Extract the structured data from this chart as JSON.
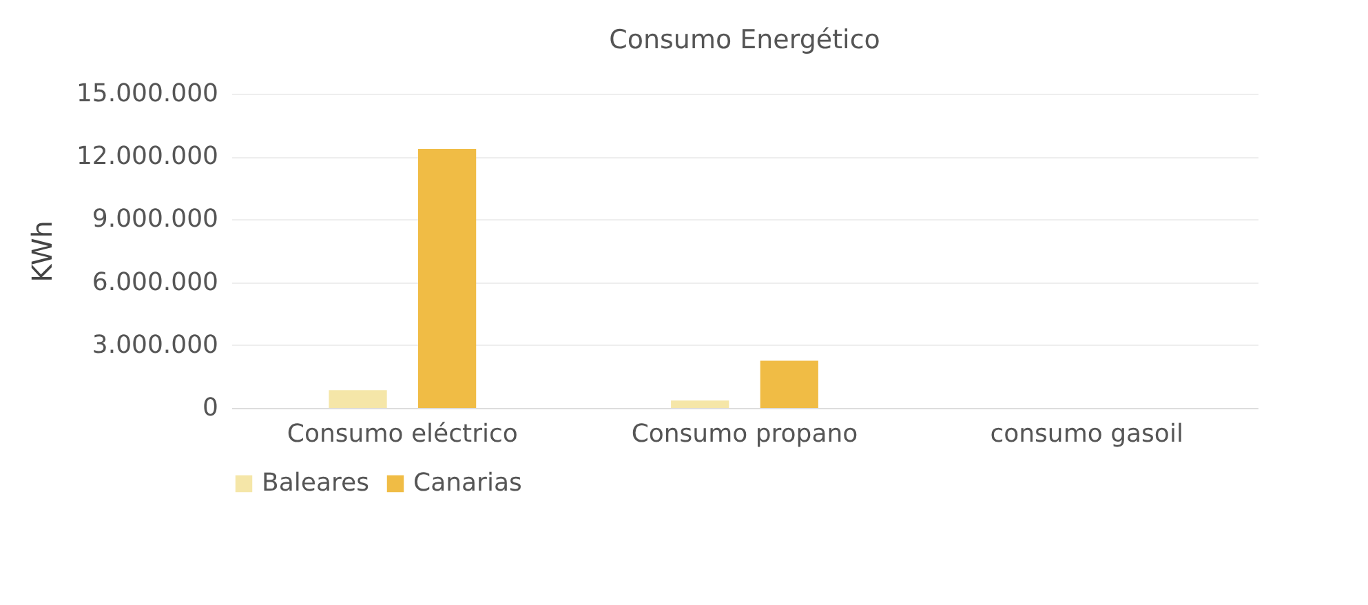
{
  "chart_data": {
    "type": "bar",
    "title": "Consumo Energético",
    "ylabel": "KWh",
    "categories": [
      "Consumo eléctrico",
      "Consumo propano",
      "consumo gasoil"
    ],
    "series": [
      {
        "name": "Baleares",
        "color": "#f5e6a8",
        "values": [
          850000,
          350000,
          null
        ]
      },
      {
        "name": "Canarias",
        "color": "#f0bc45",
        "values": [
          12370000,
          2250000,
          0
        ]
      }
    ],
    "ylim": [
      0,
      15000000
    ],
    "yticks": [
      {
        "value": 0,
        "label": "0"
      },
      {
        "value": 3000000,
        "label": "3.000.000"
      },
      {
        "value": 6000000,
        "label": "6.000.000"
      },
      {
        "value": 9000000,
        "label": "9.000.000"
      },
      {
        "value": 12000000,
        "label": "12.000.000"
      },
      {
        "value": 15000000,
        "label": "15.000.000"
      }
    ],
    "grid": "y",
    "legend": "bottom"
  }
}
